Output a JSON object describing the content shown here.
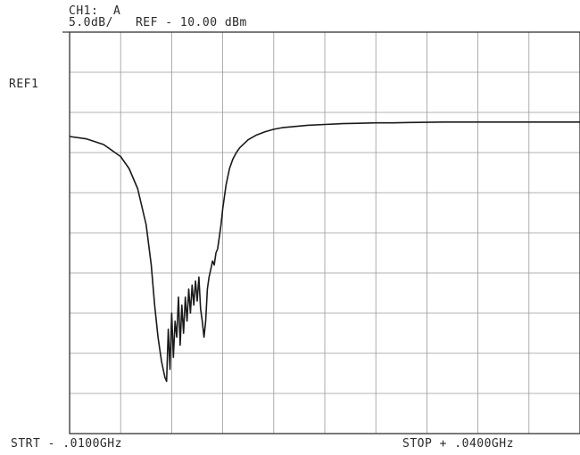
{
  "header": {
    "channel": "CH1:  A",
    "scale_ref": "5.0dB/   REF - 10.00 dBm"
  },
  "ref_marker": "REF1",
  "footer": {
    "start": "STRT - .0100GHz",
    "stop": "STOP + .0400GHz"
  },
  "colors": {
    "trace": "#1a1a1a",
    "grid": "#9a9a9a",
    "frame": "#333333"
  },
  "chart_data": {
    "type": "line",
    "xlim": [
      0.01,
      0.04
    ],
    "ylim": [
      -60,
      -10
    ],
    "x_divisions": 10,
    "y_divisions": 10,
    "reference_level_dbm": -10.0,
    "scale_db_per_div": 5.0,
    "grid": true,
    "series": [
      {
        "x": [
          0.01,
          0.011,
          0.012,
          0.013,
          0.0135,
          0.014,
          0.0145,
          0.0148,
          0.015,
          0.0152,
          0.0154,
          0.0156,
          0.0157,
          0.0158,
          0.0159,
          0.016,
          0.0161,
          0.0162,
          0.0163,
          0.0164,
          0.0165,
          0.0166,
          0.0167,
          0.0168,
          0.0169,
          0.017,
          0.0171,
          0.0172,
          0.0173,
          0.0174,
          0.0175,
          0.0176,
          0.0177,
          0.0178,
          0.0179,
          0.018,
          0.0181,
          0.0182,
          0.0183,
          0.0184,
          0.0185,
          0.0186,
          0.0187,
          0.0188,
          0.0189,
          0.019,
          0.0191,
          0.0192,
          0.0194,
          0.0196,
          0.0198,
          0.02,
          0.0205,
          0.021,
          0.0215,
          0.022,
          0.0225,
          0.023,
          0.024,
          0.025,
          0.026,
          0.027,
          0.028,
          0.029,
          0.03,
          0.032,
          0.034,
          0.036,
          0.038,
          0.04
        ],
        "y": [
          -23.0,
          -23.3,
          -24.0,
          -25.5,
          -27.0,
          -29.5,
          -34.0,
          -39.0,
          -44.0,
          -48.0,
          -51.0,
          -53.0,
          -53.5,
          -47.0,
          -52.0,
          -45.0,
          -50.5,
          -46.0,
          -48.0,
          -43.0,
          -49.0,
          -44.0,
          -47.5,
          -43.0,
          -46.0,
          -42.0,
          -45.0,
          -41.5,
          -44.0,
          -41.0,
          -43.5,
          -40.5,
          -44.5,
          -46.0,
          -48.0,
          -46.0,
          -42.0,
          -40.5,
          -39.5,
          -38.5,
          -39.0,
          -37.5,
          -37.0,
          -35.5,
          -34.0,
          -32.0,
          -30.5,
          -29.0,
          -27.0,
          -25.8,
          -25.0,
          -24.4,
          -23.4,
          -22.8,
          -22.4,
          -22.1,
          -21.9,
          -21.8,
          -21.6,
          -21.5,
          -21.4,
          -21.35,
          -21.3,
          -21.3,
          -21.25,
          -21.2,
          -21.2,
          -21.2,
          -21.2,
          -21.2
        ]
      }
    ]
  }
}
